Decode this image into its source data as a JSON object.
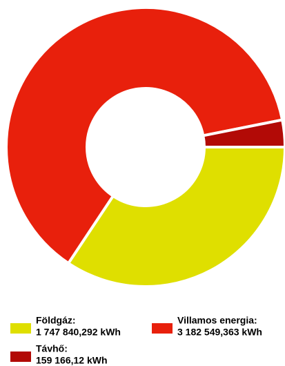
{
  "chart_data": {
    "type": "pie",
    "donut": true,
    "categories": [
      "Földgáz:",
      "Villamos energia:",
      "Távhő:"
    ],
    "values": [
      1747840.292,
      3182549.363,
      159166.12
    ],
    "value_labels": [
      "1 747 840,292 kWh",
      "3 182 549,363 kWh",
      "159 166,12 kWh"
    ],
    "colors": [
      "#dfdf00",
      "#e8200c",
      "#b20a06"
    ],
    "legend": "bottom"
  }
}
